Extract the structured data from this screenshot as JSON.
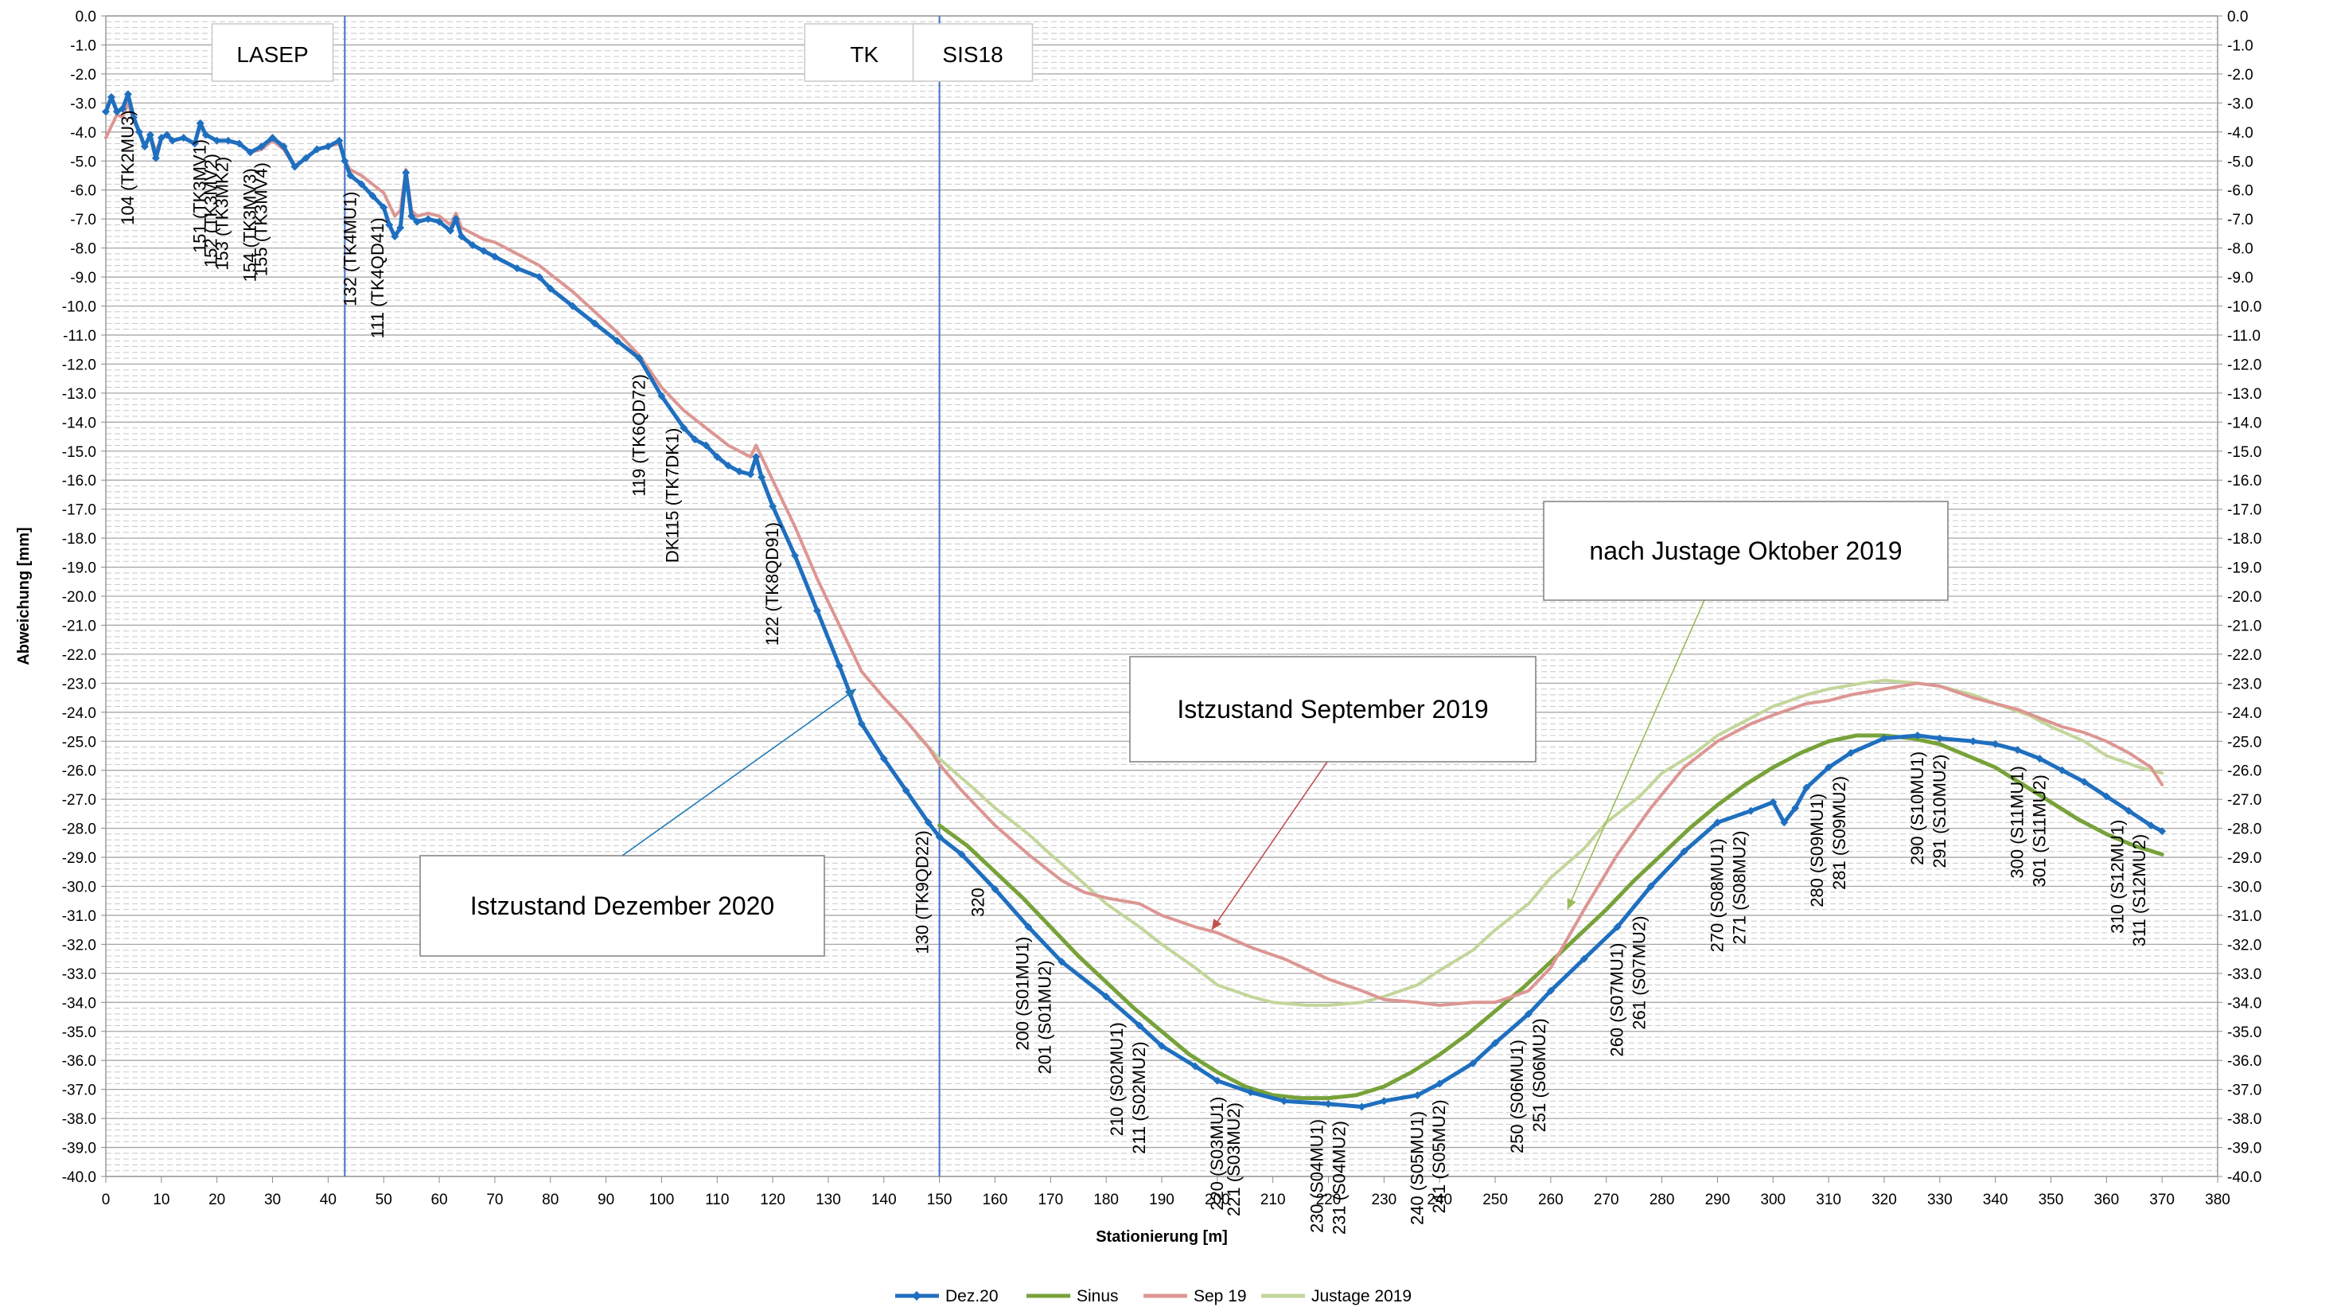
{
  "chart_data": {
    "type": "line",
    "title": "",
    "xlabel": "Stationierung [m]",
    "ylabel": "Abweichung [mm]",
    "xlim": [
      0,
      380
    ],
    "ylim": [
      -40,
      0
    ],
    "x_ticks": [
      0,
      10,
      20,
      30,
      40,
      50,
      60,
      70,
      80,
      90,
      100,
      110,
      120,
      130,
      140,
      150,
      160,
      170,
      180,
      190,
      200,
      210,
      220,
      230,
      240,
      250,
      260,
      270,
      280,
      290,
      300,
      310,
      320,
      330,
      340,
      350,
      360,
      370,
      380
    ],
    "y_ticks": [
      "0.0",
      "-1.0",
      "-2.0",
      "-3.0",
      "-4.0",
      "-5.0",
      "-6.0",
      "-7.0",
      "-8.0",
      "-9.0",
      "-10.0",
      "-11.0",
      "-12.0",
      "-13.0",
      "-14.0",
      "-15.0",
      "-16.0",
      "-17.0",
      "-18.0",
      "-19.0",
      "-20.0",
      "-21.0",
      "-22.0",
      "-23.0",
      "-24.0",
      "-25.0",
      "-26.0",
      "-27.0",
      "-28.0",
      "-29.0",
      "-30.0",
      "-31.0",
      "-32.0",
      "-33.0",
      "-34.0",
      "-35.0",
      "-36.0",
      "-37.0",
      "-38.0",
      "-39.0",
      "-40.0"
    ],
    "grid": true,
    "legend_position": "bottom",
    "colors": {
      "dez20": "#1f6fbf",
      "sinus": "#77a23a",
      "sep19": "#dc9693",
      "justage": "#c3d69b",
      "vline": "#4472c4"
    },
    "section_lines": [
      43,
      150
    ],
    "section_labels": [
      {
        "text": "LASEP",
        "x": 30
      },
      {
        "text": "TK",
        "x": 136.5
      },
      {
        "text": "SIS18",
        "x": 156
      }
    ],
    "annotations": [
      {
        "text": "Istzustand September 2019",
        "arrow_to": [
          199,
          -31.5
        ]
      },
      {
        "text": "nach Justage Oktober 2019",
        "arrow_to": [
          263,
          -30.8
        ]
      },
      {
        "text": "Istzustand Dezember 2020",
        "arrow_to": [
          135,
          -23.2
        ]
      }
    ],
    "point_labels": [
      {
        "x": 4,
        "text": "104 (TK2MU3)"
      },
      {
        "x": 17,
        "text": "151 (TK3MV1)"
      },
      {
        "x": 19,
        "text": "152 (TK3MV2)"
      },
      {
        "x": 21,
        "text": "153 (TK3MK2)"
      },
      {
        "x": 26,
        "text": "154 (TK3MV3)"
      },
      {
        "x": 28,
        "text": "155 (TK3MV4)"
      },
      {
        "x": 44,
        "text": "132 (TK4MU1)"
      },
      {
        "x": 49,
        "text": "111 (TK4QD41)"
      },
      {
        "x": 96,
        "text": "119 (TK6QD72)"
      },
      {
        "x": 102,
        "text": "DK115 (TK7DK1)"
      },
      {
        "x": 120,
        "text": "122 (TK8QD91)"
      },
      {
        "x": 147,
        "text": "130 (TK9QD22)"
      },
      {
        "x": 157,
        "text": "320"
      },
      {
        "x": 165,
        "text": "200 (S01MU1)"
      },
      {
        "x": 169,
        "text": "201 (S01MU2)"
      },
      {
        "x": 182,
        "text": "210 (S02MU1)"
      },
      {
        "x": 186,
        "text": "211 (S02MU2)"
      },
      {
        "x": 200,
        "text": "220 (S03MU1)"
      },
      {
        "x": 203,
        "text": "221 (S03MU2)"
      },
      {
        "x": 218,
        "text": "230 (S04MU1)"
      },
      {
        "x": 222,
        "text": "231 (S04MU2)"
      },
      {
        "x": 236,
        "text": "240 (S05MU1)"
      },
      {
        "x": 240,
        "text": "241 (S05MU2)"
      },
      {
        "x": 254,
        "text": "250 (S06MU1)"
      },
      {
        "x": 258,
        "text": "251 (S06MU2)"
      },
      {
        "x": 272,
        "text": "260 (S07MU1)"
      },
      {
        "x": 276,
        "text": "261 (S07MU2)"
      },
      {
        "x": 290,
        "text": "270 (S08MU1)"
      },
      {
        "x": 294,
        "text": "271 (S08MU2)"
      },
      {
        "x": 308,
        "text": "280 (S09MU1)"
      },
      {
        "x": 312,
        "text": "281 (S09MU2)"
      },
      {
        "x": 326,
        "text": "290 (S10MU1)"
      },
      {
        "x": 330,
        "text": "291 (S10MU2)"
      },
      {
        "x": 344,
        "text": "300 (S11MU1)"
      },
      {
        "x": 348,
        "text": "301 (S11MU2)"
      },
      {
        "x": 362,
        "text": "310 (S12MU1)"
      },
      {
        "x": 366,
        "text": "311 (S12MU2)"
      }
    ],
    "series": [
      {
        "name": "Dez.20",
        "key": "dez20",
        "markers": true,
        "x": [
          0,
          1,
          2,
          3,
          4,
          5,
          6,
          7,
          8,
          9,
          10,
          11,
          12,
          14,
          16,
          17,
          18,
          20,
          22,
          24,
          26,
          28,
          30,
          32,
          34,
          36,
          38,
          40,
          42,
          43,
          44,
          46,
          48,
          50,
          51,
          52,
          53,
          54,
          55,
          56,
          58,
          60,
          62,
          63,
          64,
          66,
          68,
          70,
          74,
          78,
          80,
          84,
          88,
          92,
          96,
          100,
          104,
          106,
          108,
          110,
          112,
          114,
          116,
          117,
          118,
          120,
          124,
          128,
          132,
          136,
          140,
          144,
          148,
          150,
          154,
          160,
          166,
          172,
          180,
          186,
          190,
          196,
          200,
          206,
          212,
          220,
          226,
          230,
          236,
          240,
          246,
          250,
          256,
          260,
          266,
          272,
          278,
          284,
          290,
          296,
          300,
          302,
          304,
          306,
          310,
          314,
          320,
          326,
          330,
          336,
          340,
          344,
          348,
          352,
          356,
          360,
          364,
          368,
          370
        ],
        "y": [
          -3.3,
          -2.8,
          -3.3,
          -3.2,
          -2.7,
          -3.5,
          -4.0,
          -4.5,
          -4.1,
          -4.9,
          -4.2,
          -4.1,
          -4.3,
          -4.2,
          -4.4,
          -3.7,
          -4.1,
          -4.3,
          -4.3,
          -4.4,
          -4.7,
          -4.5,
          -4.2,
          -4.5,
          -5.2,
          -4.9,
          -4.6,
          -4.5,
          -4.3,
          -5.0,
          -5.5,
          -5.8,
          -6.2,
          -6.6,
          -7.2,
          -7.6,
          -7.3,
          -5.4,
          -6.9,
          -7.1,
          -7.0,
          -7.1,
          -7.4,
          -7.0,
          -7.6,
          -7.9,
          -8.1,
          -8.3,
          -8.7,
          -9.0,
          -9.4,
          -10.0,
          -10.6,
          -11.2,
          -11.8,
          -13.1,
          -14.2,
          -14.6,
          -14.8,
          -15.2,
          -15.5,
          -15.7,
          -15.8,
          -15.2,
          -15.9,
          -16.9,
          -18.6,
          -20.5,
          -22.4,
          -24.4,
          -25.6,
          -26.7,
          -27.8,
          -28.3,
          -28.9,
          -30.1,
          -31.4,
          -32.6,
          -33.8,
          -34.8,
          -35.5,
          -36.2,
          -36.7,
          -37.1,
          -37.4,
          -37.5,
          -37.6,
          -37.4,
          -37.2,
          -36.8,
          -36.1,
          -35.4,
          -34.4,
          -33.6,
          -32.5,
          -31.4,
          -30.0,
          -28.8,
          -27.8,
          -27.4,
          -27.1,
          -27.8,
          -27.3,
          -26.6,
          -25.9,
          -25.4,
          -24.9,
          -24.8,
          -24.9,
          -25.0,
          -25.1,
          -25.3,
          -25.6,
          -26.0,
          -26.4,
          -26.9,
          -27.4,
          -27.9,
          -28.1
        ]
      },
      {
        "name": "Sinus",
        "key": "sinus",
        "markers": false,
        "x": [
          150,
          155,
          160,
          165,
          170,
          175,
          180,
          185,
          190,
          195,
          200,
          205,
          210,
          215,
          220,
          225,
          230,
          235,
          240,
          245,
          250,
          255,
          260,
          265,
          270,
          275,
          280,
          285,
          290,
          295,
          300,
          305,
          310,
          315,
          320,
          325,
          330,
          335,
          340,
          345,
          350,
          355,
          360,
          365,
          370
        ],
        "y": [
          -27.9,
          -28.6,
          -29.5,
          -30.4,
          -31.4,
          -32.4,
          -33.3,
          -34.2,
          -35.0,
          -35.8,
          -36.4,
          -36.9,
          -37.2,
          -37.3,
          -37.3,
          -37.2,
          -36.9,
          -36.4,
          -35.8,
          -35.1,
          -34.3,
          -33.5,
          -32.6,
          -31.7,
          -30.8,
          -29.8,
          -28.9,
          -28.0,
          -27.2,
          -26.5,
          -25.9,
          -25.4,
          -25.0,
          -24.8,
          -24.8,
          -24.9,
          -25.1,
          -25.5,
          -25.9,
          -26.5,
          -27.1,
          -27.7,
          -28.2,
          -28.6,
          -28.9
        ]
      },
      {
        "name": "Sep 19",
        "key": "sep19",
        "markers": false,
        "x": [
          0,
          1,
          2,
          3,
          4,
          5,
          6,
          7,
          8,
          9,
          10,
          11,
          12,
          14,
          16,
          17,
          18,
          20,
          22,
          24,
          26,
          28,
          30,
          32,
          34,
          36,
          38,
          40,
          42,
          43,
          44,
          46,
          48,
          50,
          51,
          52,
          53,
          54,
          55,
          56,
          58,
          60,
          62,
          63,
          64,
          66,
          68,
          70,
          74,
          78,
          80,
          84,
          88,
          92,
          96,
          100,
          104,
          106,
          108,
          110,
          112,
          114,
          116,
          117,
          118,
          120,
          124,
          128,
          132,
          136,
          140,
          144,
          148,
          150,
          154,
          160,
          166,
          172,
          176,
          180,
          186,
          190,
          196,
          200,
          206,
          212,
          220,
          226,
          230,
          236,
          240,
          246,
          250,
          256,
          260,
          266,
          272,
          278,
          284,
          290,
          296,
          300,
          306,
          310,
          314,
          320,
          326,
          330,
          336,
          340,
          344,
          348,
          352,
          356,
          360,
          364,
          368,
          370
        ],
        "y": [
          -4.2,
          -3.8,
          -3.4,
          -3.5,
          -3.0,
          -3.6,
          -4.0,
          -4.5,
          -4.1,
          -4.7,
          -4.2,
          -4.1,
          -4.3,
          -4.2,
          -4.4,
          -3.8,
          -4.1,
          -4.3,
          -4.3,
          -4.4,
          -4.7,
          -4.6,
          -4.3,
          -4.6,
          -5.2,
          -4.9,
          -4.6,
          -4.5,
          -4.4,
          -5.0,
          -5.3,
          -5.5,
          -5.8,
          -6.1,
          -6.5,
          -6.9,
          -6.7,
          -5.3,
          -6.7,
          -6.9,
          -6.8,
          -6.9,
          -7.2,
          -6.8,
          -7.3,
          -7.5,
          -7.7,
          -7.8,
          -8.2,
          -8.6,
          -8.9,
          -9.5,
          -10.2,
          -10.9,
          -11.7,
          -12.8,
          -13.6,
          -13.9,
          -14.2,
          -14.5,
          -14.8,
          -15.0,
          -15.2,
          -14.8,
          -15.2,
          -16.0,
          -17.6,
          -19.4,
          -21.0,
          -22.6,
          -23.5,
          -24.3,
          -25.2,
          -25.8,
          -26.7,
          -27.9,
          -28.9,
          -29.8,
          -30.2,
          -30.4,
          -30.6,
          -31.0,
          -31.4,
          -31.6,
          -32.1,
          -32.5,
          -33.2,
          -33.6,
          -33.9,
          -34.0,
          -34.1,
          -34.0,
          -34.0,
          -33.6,
          -32.8,
          -30.8,
          -28.9,
          -27.3,
          -25.9,
          -25.0,
          -24.4,
          -24.1,
          -23.7,
          -23.6,
          -23.4,
          -23.2,
          -23.0,
          -23.1,
          -23.5,
          -23.7,
          -23.9,
          -24.2,
          -24.5,
          -24.7,
          -25.0,
          -25.4,
          -25.9,
          -26.5
        ]
      },
      {
        "name": "Justage 2019",
        "key": "justage",
        "markers": false,
        "x": [
          146,
          150,
          156,
          160,
          166,
          170,
          176,
          180,
          186,
          190,
          196,
          200,
          206,
          210,
          216,
          220,
          226,
          230,
          236,
          240,
          246,
          250,
          256,
          260,
          266,
          270,
          276,
          280,
          286,
          290,
          296,
          300,
          306,
          310,
          316,
          320,
          326,
          330,
          336,
          340,
          346,
          350,
          356,
          360,
          366,
          370
        ],
        "y": [
          -24.8,
          -25.6,
          -26.6,
          -27.3,
          -28.2,
          -28.9,
          -29.9,
          -30.6,
          -31.4,
          -32.0,
          -32.8,
          -33.4,
          -33.8,
          -34.0,
          -34.1,
          -34.1,
          -34.0,
          -33.8,
          -33.4,
          -32.9,
          -32.2,
          -31.5,
          -30.6,
          -29.7,
          -28.7,
          -27.8,
          -26.9,
          -26.1,
          -25.4,
          -24.8,
          -24.2,
          -23.8,
          -23.4,
          -23.2,
          -23.0,
          -22.9,
          -23.0,
          -23.1,
          -23.4,
          -23.7,
          -24.1,
          -24.5,
          -25.0,
          -25.5,
          -25.9,
          -26.1
        ]
      }
    ]
  }
}
